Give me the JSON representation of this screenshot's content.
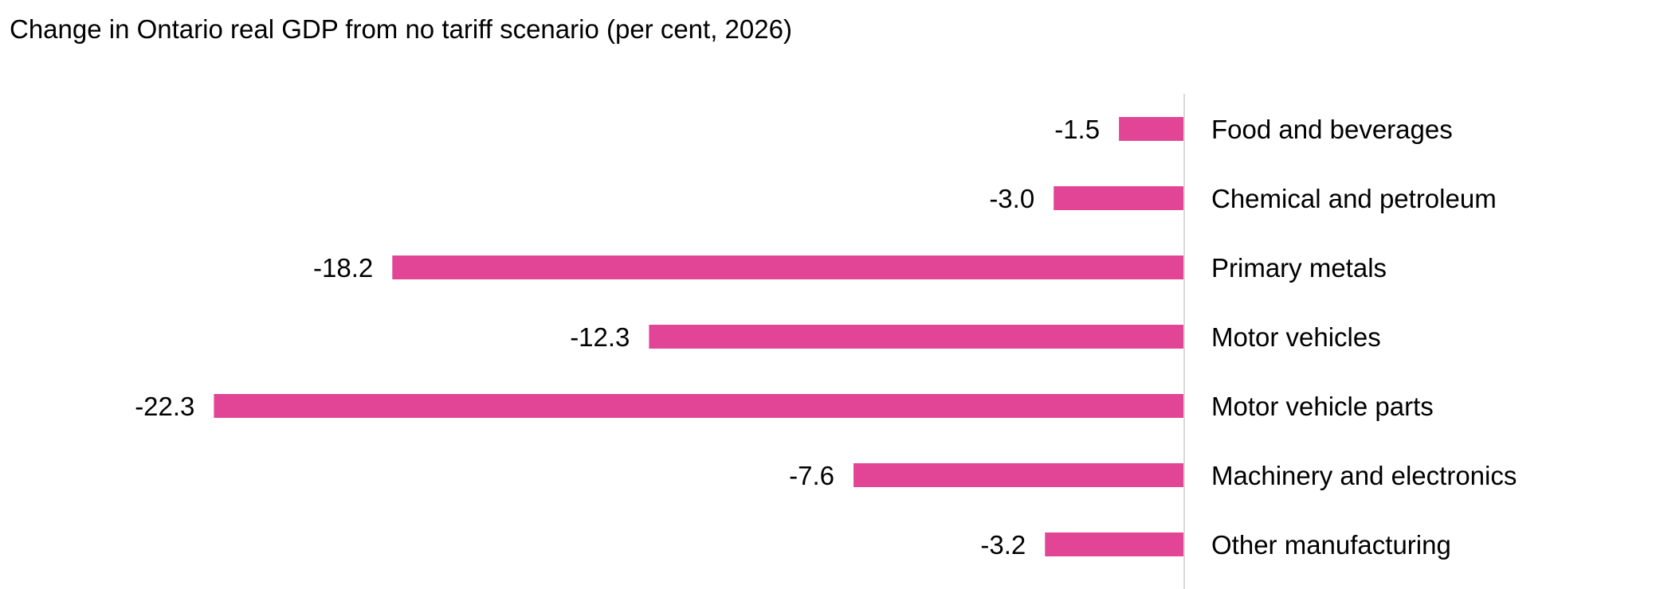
{
  "chart_data": {
    "type": "bar",
    "orientation": "horizontal",
    "title": "Change in Ontario real GDP from no tariff scenario (per cent, 2026)",
    "categories": [
      "Food and beverages",
      "Chemical and petroleum",
      "Primary metals",
      "Motor vehicles",
      "Motor vehicle parts",
      "Machinery and electronics",
      "Other manufacturing"
    ],
    "values": [
      -1.5,
      -3.0,
      -18.2,
      -12.3,
      -22.3,
      -7.6,
      -3.2
    ],
    "data_labels": [
      "-1.5",
      "-3.0",
      "-18.2",
      "-12.3",
      "-22.3",
      "-7.6",
      "-3.2"
    ],
    "bar_color": "#e24595",
    "axis_color": "#d9d9d9",
    "xlim": [
      -25,
      0
    ],
    "grid": false,
    "legend": "none"
  }
}
